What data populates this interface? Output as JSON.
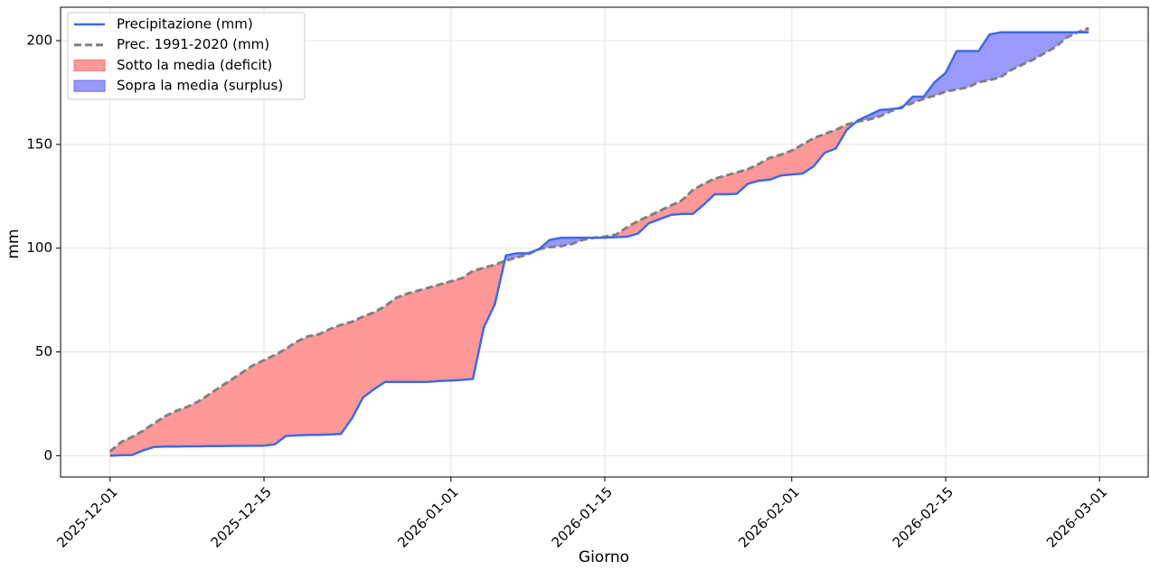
{
  "chart_data": {
    "type": "line",
    "xlabel": "Giorno",
    "ylabel": "mm",
    "x": [
      "2025-12-01",
      "2025-12-02",
      "2025-12-03",
      "2025-12-04",
      "2025-12-05",
      "2025-12-06",
      "2025-12-07",
      "2025-12-08",
      "2025-12-09",
      "2025-12-10",
      "2025-12-11",
      "2025-12-12",
      "2025-12-13",
      "2025-12-14",
      "2025-12-15",
      "2025-12-16",
      "2025-12-17",
      "2025-12-18",
      "2025-12-19",
      "2025-12-20",
      "2025-12-21",
      "2025-12-22",
      "2025-12-23",
      "2025-12-24",
      "2025-12-25",
      "2025-12-26",
      "2025-12-27",
      "2025-12-28",
      "2025-12-29",
      "2025-12-30",
      "2025-12-31",
      "2026-01-01",
      "2026-01-02",
      "2026-01-03",
      "2026-01-04",
      "2026-01-05",
      "2026-01-06",
      "2026-01-07",
      "2026-01-08",
      "2026-01-09",
      "2026-01-10",
      "2026-01-11",
      "2026-01-12",
      "2026-01-13",
      "2026-01-14",
      "2026-01-15",
      "2026-01-16",
      "2026-01-17",
      "2026-01-18",
      "2026-01-19",
      "2026-01-20",
      "2026-01-21",
      "2026-01-22",
      "2026-01-23",
      "2026-01-24",
      "2026-01-25",
      "2026-01-26",
      "2026-01-27",
      "2026-01-28",
      "2026-01-29",
      "2026-01-30",
      "2026-01-31",
      "2026-02-01",
      "2026-02-02",
      "2026-02-03",
      "2026-02-04",
      "2026-02-05",
      "2026-02-06",
      "2026-02-07",
      "2026-02-08",
      "2026-02-09",
      "2026-02-10",
      "2026-02-11",
      "2026-02-12",
      "2026-02-13",
      "2026-02-14",
      "2026-02-15",
      "2026-02-16",
      "2026-02-17",
      "2026-02-18",
      "2026-02-19",
      "2026-02-20",
      "2026-02-21",
      "2026-02-22",
      "2026-02-23",
      "2026-02-24",
      "2026-02-25",
      "2026-02-26",
      "2026-02-27",
      "2026-02-28"
    ],
    "series": [
      {
        "name": "Precipitazione (mm)",
        "color": "#4169e1",
        "values": [
          0,
          0.2,
          0.3,
          2.5,
          4.2,
          4.4,
          4.4,
          4.5,
          4.5,
          4.6,
          4.6,
          4.7,
          4.7,
          4.8,
          4.8,
          5.5,
          9.5,
          9.8,
          10,
          10,
          10.2,
          10.5,
          18,
          28,
          32,
          35.5,
          35.5,
          35.5,
          35.5,
          35.6,
          36,
          36.2,
          36.5,
          37,
          62,
          73,
          96.5,
          97.5,
          97.5,
          99.5,
          104,
          105,
          105,
          105,
          105,
          105,
          105.3,
          105.5,
          107,
          112,
          114,
          116,
          116.5,
          116.5,
          121,
          126,
          126,
          126.2,
          131,
          132.5,
          133,
          135,
          135.5,
          136,
          139.5,
          146,
          148,
          157,
          161.5,
          164,
          166.5,
          167,
          167.5,
          173,
          173,
          180,
          184.5,
          195,
          195,
          195,
          203,
          204,
          204,
          204,
          204,
          204,
          204,
          204,
          204,
          204
        ]
      },
      {
        "name": "Prec. 1991-2020 (mm)",
        "color": "#808080",
        "dashed": true,
        "values": [
          2,
          6.5,
          9,
          12,
          15.5,
          19,
          21.5,
          23.5,
          26,
          29.5,
          33,
          36.5,
          40,
          43.5,
          46,
          48.5,
          51.5,
          55,
          57.5,
          58.5,
          61,
          63,
          64.5,
          67,
          69,
          72,
          76,
          78,
          79.5,
          81,
          82.5,
          84,
          85.5,
          89,
          90.5,
          92,
          94,
          95.5,
          97,
          99.5,
          100.5,
          101,
          102,
          104,
          105,
          105.5,
          106.5,
          110,
          113,
          115.5,
          118,
          120.5,
          123,
          128,
          131,
          133.5,
          135,
          136.5,
          138,
          140.5,
          143.5,
          145,
          147,
          150,
          153,
          155,
          157,
          159.5,
          161,
          162,
          163.5,
          166,
          168,
          170,
          172,
          173.5,
          175.5,
          176.5,
          177.5,
          180,
          181,
          182.5,
          186,
          188.5,
          191,
          194,
          197,
          201.5,
          204,
          206
        ]
      }
    ],
    "fills": [
      {
        "name": "Sotto la media (deficit)",
        "color": "#ff9999"
      },
      {
        "name": "Sopra la media (surplus)",
        "color": "#9999ff"
      }
    ],
    "xlim": [
      "2025-11-26T12:00",
      "2026-03-05T10:00"
    ],
    "xticks": [
      "2025-12-01",
      "2025-12-15",
      "2026-01-01",
      "2026-01-15",
      "2026-02-01",
      "2026-02-15",
      "2026-03-01"
    ],
    "ylim": [
      -10.3,
      216.1
    ],
    "yticks": [
      0,
      50,
      100,
      150,
      200
    ],
    "grid": true,
    "legend": "upper left"
  }
}
